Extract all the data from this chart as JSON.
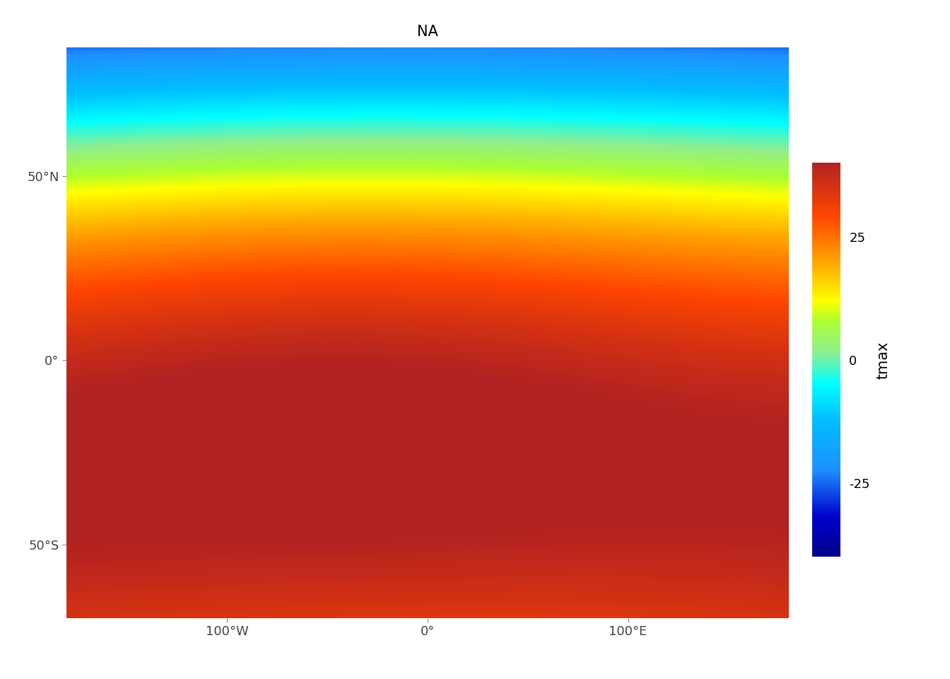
{
  "title": "NA",
  "colorbar_label": "tmax",
  "colorbar_ticks": [
    25,
    0,
    -25
  ],
  "vmin": -40,
  "vmax": 40,
  "colormap_colors": [
    [
      0.0,
      "#00008B"
    ],
    [
      0.1,
      "#0000CD"
    ],
    [
      0.22,
      "#1E90FF"
    ],
    [
      0.35,
      "#00BFFF"
    ],
    [
      0.44,
      "#00FFFF"
    ],
    [
      0.52,
      "#90EE90"
    ],
    [
      0.6,
      "#ADFF2F"
    ],
    [
      0.65,
      "#FFFF00"
    ],
    [
      0.75,
      "#FFA500"
    ],
    [
      0.87,
      "#FF4500"
    ],
    [
      1.0,
      "#B22222"
    ]
  ],
  "background_color": "#FFFFFF",
  "title_fontsize": 15,
  "tick_label_fontsize": 13,
  "colorbar_tick_fontsize": 13,
  "colorbar_label_fontsize": 15,
  "figsize": [
    13.44,
    9.6
  ],
  "dpi": 100,
  "lon_min": -180,
  "lon_max": 180,
  "lat_min": -70,
  "lat_max": 85,
  "xticks": [
    -100,
    0,
    100
  ],
  "yticks": [
    50,
    0,
    -50
  ],
  "xtick_labels": [
    "100°W",
    "0°",
    "100°E"
  ],
  "ytick_labels": [
    "50°N",
    "0°",
    "50°S"
  ]
}
